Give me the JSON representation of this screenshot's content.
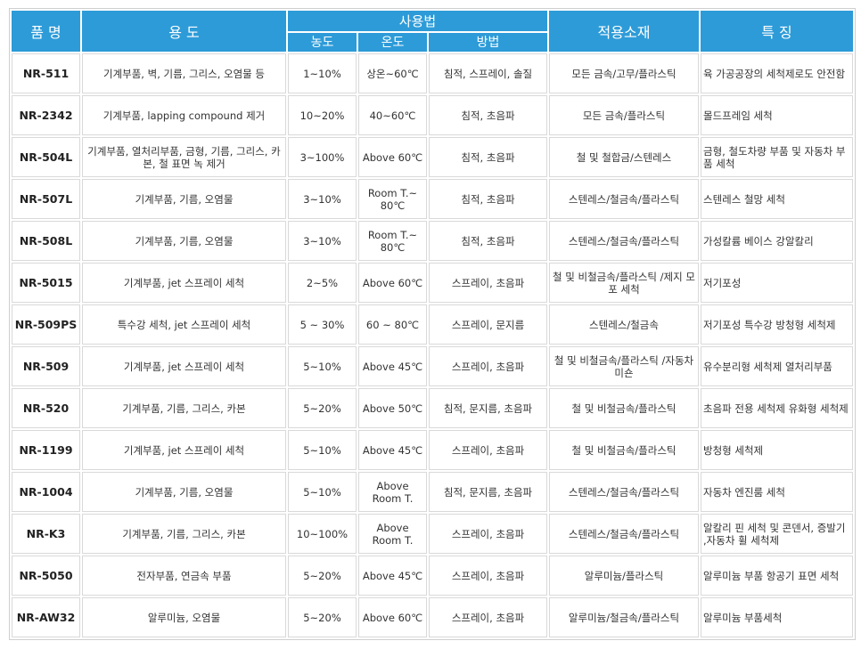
{
  "headers": {
    "product": "품 명",
    "usage": "용 도",
    "method_group": "사용법",
    "concentration": "농도",
    "temperature": "온도",
    "method": "방법",
    "materials": "적용소재",
    "features": "특 징"
  },
  "rows": [
    {
      "name": "NR-511",
      "usage": "기계부품, 벽, 기름, 그리스, 오염물 등",
      "conc": "1~10%",
      "temp": "상온~60℃",
      "method": "침적, 스프레이, 솔질",
      "material": "모든 금속/고무/플라스틱",
      "feature": "육 가공공장의 세척제로도 안전함"
    },
    {
      "name": "NR-2342",
      "usage": "기계부품, lapping compound 제거",
      "conc": "10~20%",
      "temp": "40~60℃",
      "method": "침적, 초음파",
      "material": "모든 금속/플라스틱",
      "feature": "몰드프레임 세척"
    },
    {
      "name": "NR-504L",
      "usage": "기계부품, 열처리부품, 금형, 기름, 그리스, 카본, 철 표면 녹 제거",
      "conc": "3~100%",
      "temp": "Above 60℃",
      "method": "침적, 초음파",
      "material": "철 및 철합금/스텐레스",
      "feature": "금형, 철도차량 부품 및 자동차 부품 세척"
    },
    {
      "name": "NR-507L",
      "usage": "기계부품, 기름, 오염물",
      "conc": "3~10%",
      "temp": "Room T.~ 80℃",
      "method": "침적, 초음파",
      "material": "스텐레스/철금속/플라스틱",
      "feature": "스텐레스 철망 세척"
    },
    {
      "name": "NR-508L",
      "usage": "기계부품, 기름, 오염물",
      "conc": "3~10%",
      "temp": "Room T.~ 80℃",
      "method": "침적, 초음파",
      "material": "스텐레스/철금속/플라스틱",
      "feature": "가성칼륨 베이스 강알칼리"
    },
    {
      "name": "NR-5015",
      "usage": "기계부품, jet 스프레이 세척",
      "conc": "2~5%",
      "temp": "Above 60℃",
      "method": "스프레이, 초음파",
      "material": "철 및 비철금속/플라스틱 /제지 모포 세척",
      "feature": "저기포성"
    },
    {
      "name": "NR-509PS",
      "usage": "특수강 세척, jet 스프레이 세척",
      "conc": "5 ~ 30%",
      "temp": "60 ~ 80℃",
      "method": "스프레이, 문지름",
      "material": "스텐레스/철금속",
      "feature": "저기포성 특수강 방청형 세척제"
    },
    {
      "name": "NR-509",
      "usage": "기계부품, jet 스프레이 세척",
      "conc": "5~10%",
      "temp": "Above 45℃",
      "method": "스프레이, 초음파",
      "material": "철 및 비철금속/플라스틱 /자동차 미숀",
      "feature": "유수분리형 세척제 열처리부품"
    },
    {
      "name": "NR-520",
      "usage": "기계부품, 기름, 그리스, 카본",
      "conc": "5~20%",
      "temp": "Above 50℃",
      "method": "침적, 문지름, 초음파",
      "material": "철 및 비철금속/플라스틱",
      "feature": "초음파 전용 세척제 유화형 세척제"
    },
    {
      "name": "NR-1199",
      "usage": "기계부품, jet 스프레이 세척",
      "conc": "5~10%",
      "temp": "Above 45℃",
      "method": "스프레이, 초음파",
      "material": "철 및 비철금속/플라스틱",
      "feature": "방청형 세척제"
    },
    {
      "name": "NR-1004",
      "usage": "기계부품, 기름, 오염물",
      "conc": "5~10%",
      "temp": "Above Room T.",
      "method": "침적, 문지름, 초음파",
      "material": "스텐레스/철금속/플라스틱",
      "feature": "자동차 엔진룸 세척"
    },
    {
      "name": "NR-K3",
      "usage": "기계부품, 기름, 그리스, 카본",
      "conc": "10~100%",
      "temp": "Above Room T.",
      "method": "스프레이, 초음파",
      "material": "스텐레스/철금속/플라스틱",
      "feature": "알칼리 핀 세척 및 콘덴서, 증발기 ,자동차 휠 세척제"
    },
    {
      "name": "NR-5050",
      "usage": "전자부품, 연금속 부품",
      "conc": "5~20%",
      "temp": "Above 45℃",
      "method": "스프레이, 초음파",
      "material": "알루미늄/플라스틱",
      "feature": "알루미늄 부품 항공기 표면 세척"
    },
    {
      "name": "NR-AW32",
      "usage": "알루미늄, 오염물",
      "conc": "5~20%",
      "temp": "Above 60℃",
      "method": "스프레이, 초음파",
      "material": "알루미늄/철금속/플라스틱",
      "feature": "알루미늄 부품세척"
    }
  ]
}
